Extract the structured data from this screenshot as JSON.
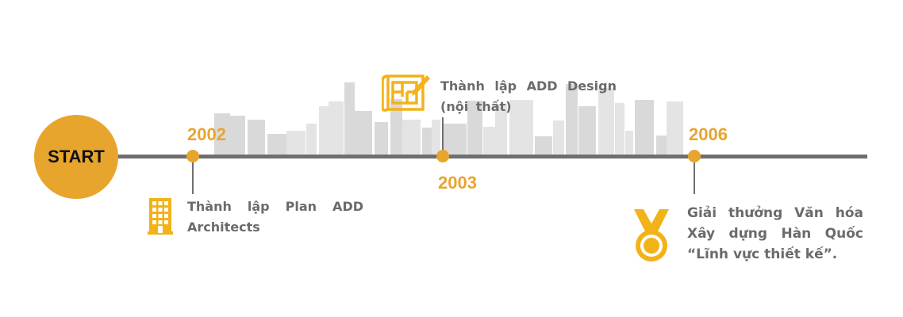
{
  "start_label": "START",
  "colors": {
    "accent": "#E8A52E",
    "line": "#6f6f6f",
    "text": "#6b6b6b",
    "skyline": "#e2e2e2"
  },
  "milestones": [
    {
      "year": "2002",
      "icon": "building-icon",
      "lines": [
        "Thành lập Plan ADD",
        "Architects"
      ]
    },
    {
      "year": "2003",
      "icon": "blueprint-pencil-icon",
      "lines": [
        "Thành lập ADD Design",
        "(nội thất)"
      ]
    },
    {
      "year": "2006",
      "icon": "medal-icon",
      "lines": [
        "Giải thưởng Văn hóa",
        "Xây dựng Hàn Quốc",
        "“Lĩnh vực thiết kế”."
      ]
    }
  ]
}
